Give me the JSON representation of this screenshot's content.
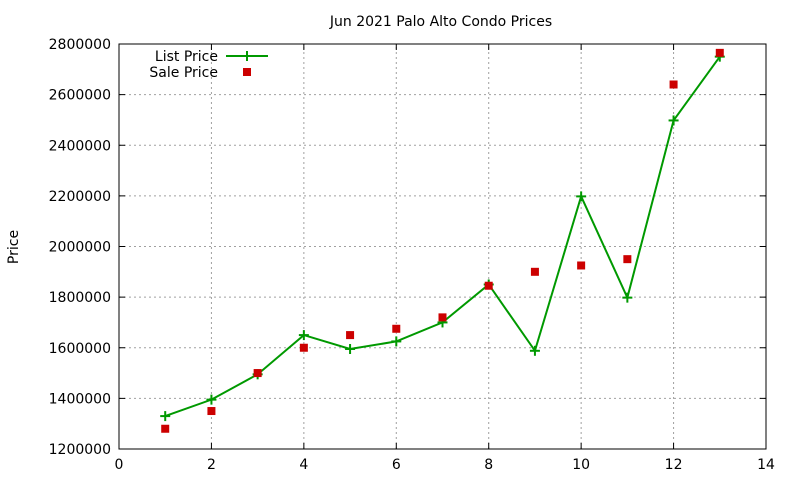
{
  "chart_data": {
    "type": "line",
    "title": "Jun 2021 Palo Alto Condo Prices",
    "xlabel": "",
    "ylabel": "Price",
    "xlim": [
      0,
      14
    ],
    "ylim": [
      1200000,
      2800000
    ],
    "x_ticks": [
      0,
      2,
      4,
      6,
      8,
      10,
      12,
      14
    ],
    "y_ticks": [
      1200000,
      1400000,
      1600000,
      1800000,
      2000000,
      2200000,
      2400000,
      2600000,
      2800000
    ],
    "grid": true,
    "legend_position": "top-left",
    "series": [
      {
        "name": "List Price",
        "kind": "line+points",
        "color": "#009900",
        "marker": "plus",
        "x": [
          1,
          2,
          3,
          4,
          5,
          6,
          7,
          8,
          9,
          10,
          11,
          12,
          13
        ],
        "y": [
          1330000,
          1395000,
          1495000,
          1650000,
          1595000,
          1625000,
          1700000,
          1850000,
          1588000,
          2198000,
          1798000,
          2498000,
          2750000
        ]
      },
      {
        "name": "Sale Price",
        "kind": "points",
        "color": "#cc0000",
        "marker": "square",
        "x": [
          1,
          2,
          3,
          4,
          5,
          6,
          7,
          8,
          9,
          10,
          11,
          12,
          13
        ],
        "y": [
          1280000,
          1350000,
          1500000,
          1600000,
          1650000,
          1675000,
          1720000,
          1845000,
          1900000,
          1925000,
          1950000,
          2640000,
          2765000
        ]
      }
    ]
  }
}
